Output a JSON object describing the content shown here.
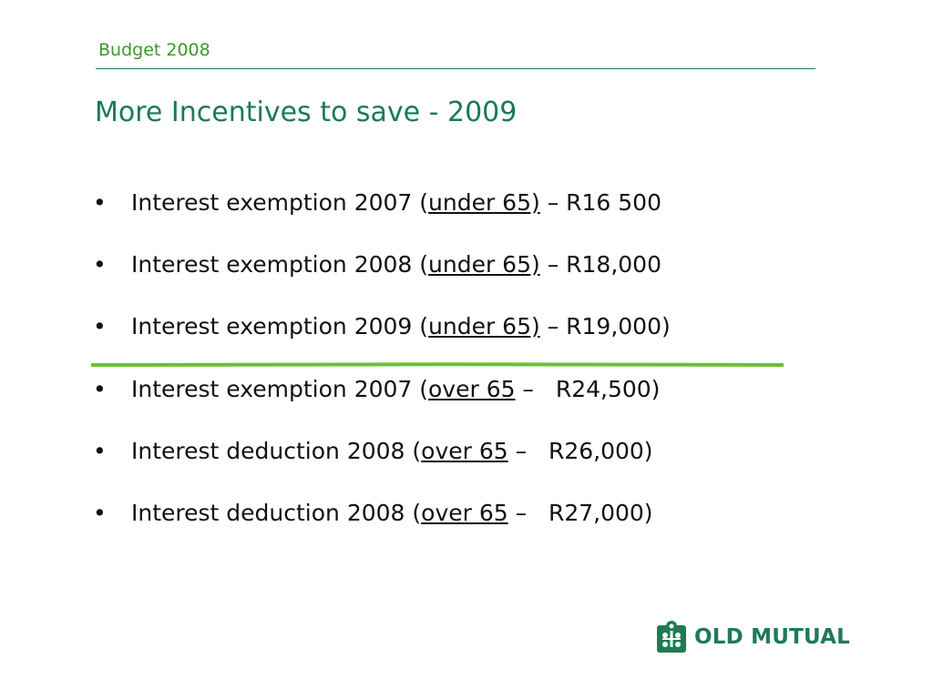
{
  "header": {
    "label": "Budget 2008"
  },
  "title": "More Incentives to save - 2009",
  "bullets": [
    {
      "marker": "•",
      "pre": "Interest exemption 2007 (",
      "link": "under 65)",
      "post": " – R16 500"
    },
    {
      "marker": "•",
      "pre": "Interest exemption 2008 (",
      "link": "under 65)",
      "post": " – R18,000"
    },
    {
      "marker": "•",
      "pre": "Interest exemption 2009 (",
      "link": "under 65)",
      "post": " – R19,000)"
    },
    {
      "marker": "•",
      "pre": "Interest exemption 2007 (",
      "link": "over 65",
      "post": " –   R24,500)"
    },
    {
      "marker": "•",
      "pre": "Interest deduction 2008 (",
      "link": "over 65",
      "post": " –   R26,000)"
    },
    {
      "marker": "•",
      "pre": "Interest deduction 2008 (",
      "link": "over 65",
      "post": " –   R27,000)"
    }
  ],
  "logo": {
    "text": "OLD MUTUAL",
    "icon": "old-mutual-crest-icon"
  },
  "colors": {
    "header": "#3a9a2a",
    "title": "#1a7a58",
    "rule": "#1f7a55",
    "divider": "#6cbf3a",
    "logo": "#1f7a55"
  }
}
